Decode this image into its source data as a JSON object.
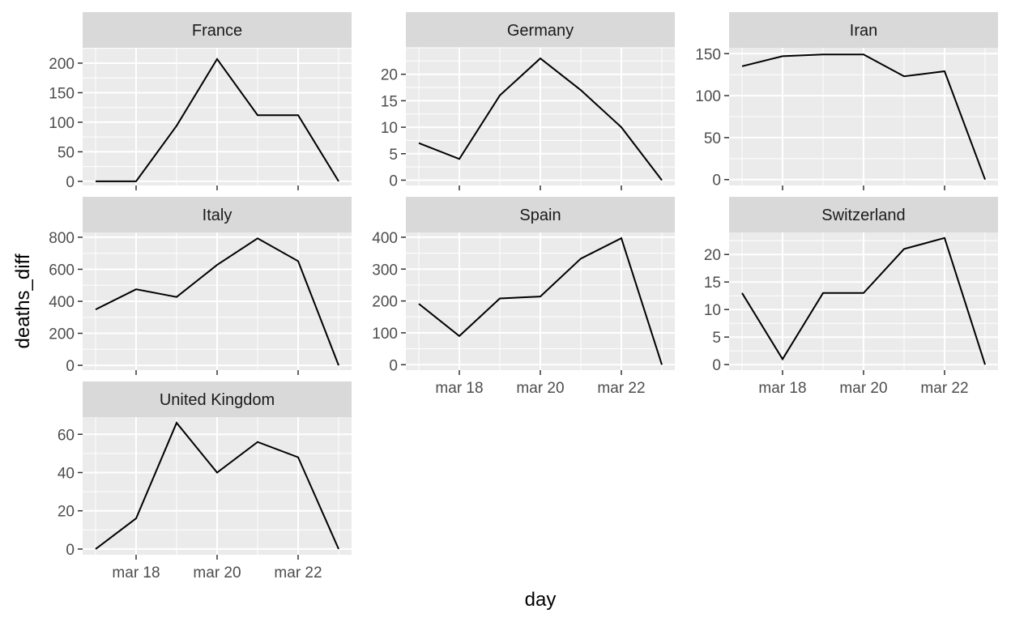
{
  "chart_data": {
    "type": "line",
    "facet_layout": "3 columns, shared x axis",
    "xlabel": "day",
    "ylabel": "deaths_diff",
    "x": [
      "mar 17",
      "mar 18",
      "mar 19",
      "mar 20",
      "mar 21",
      "mar 22",
      "mar 23"
    ],
    "x_ticks": [
      "mar 18",
      "mar 20",
      "mar 22"
    ],
    "grid": true,
    "legend": "none",
    "panels": [
      {
        "name": "France",
        "values": [
          0,
          0,
          94,
          207,
          112,
          112,
          0
        ],
        "ylim": [
          -7,
          226
        ],
        "y_ticks": [
          0,
          50,
          100,
          150,
          200
        ]
      },
      {
        "name": "Germany",
        "values": [
          7,
          4,
          16,
          23,
          17,
          10,
          0
        ],
        "ylim": [
          -1,
          25
        ],
        "y_ticks": [
          0,
          5,
          10,
          15,
          20
        ]
      },
      {
        "name": "Iran",
        "values": [
          135,
          147,
          149,
          149,
          123,
          129,
          0
        ],
        "ylim": [
          -7,
          157
        ],
        "y_ticks": [
          0,
          50,
          100,
          150
        ]
      },
      {
        "name": "Italy",
        "values": [
          349,
          475,
          427,
          627,
          793,
          651,
          0
        ],
        "ylim": [
          -30,
          830
        ],
        "y_ticks": [
          0,
          200,
          400,
          600,
          800
        ]
      },
      {
        "name": "Spain",
        "values": [
          191,
          90,
          208,
          214,
          333,
          397,
          0
        ],
        "ylim": [
          -17,
          415
        ],
        "y_ticks": [
          0,
          100,
          200,
          300,
          400
        ]
      },
      {
        "name": "Switzerland",
        "values": [
          13,
          1,
          13,
          13,
          21,
          23,
          0
        ],
        "ylim": [
          -1,
          24
        ],
        "y_ticks": [
          0,
          5,
          10,
          15,
          20
        ]
      },
      {
        "name": "United Kingdom",
        "values": [
          0,
          16,
          66,
          40,
          56,
          48,
          0
        ],
        "ylim": [
          -3,
          69
        ],
        "y_ticks": [
          0,
          20,
          40,
          60
        ]
      }
    ],
    "x_label_panels": [
      "Spain",
      "Switzerland",
      "United Kingdom"
    ]
  }
}
